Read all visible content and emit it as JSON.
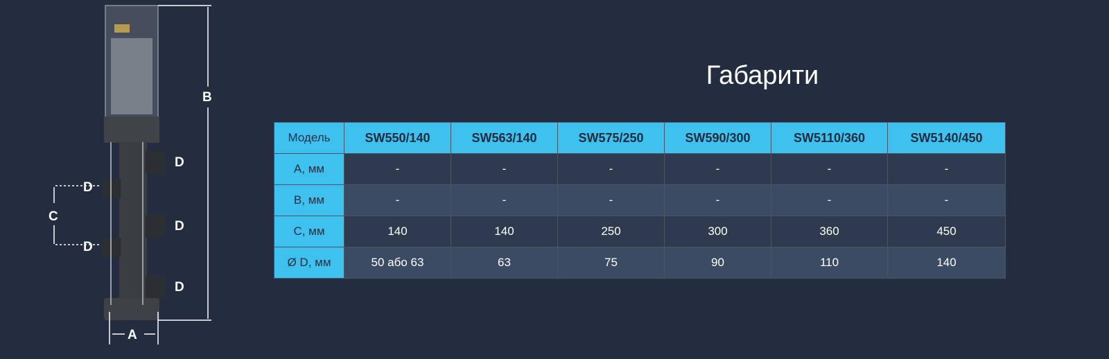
{
  "title": "Габарити",
  "table": {
    "header_label": "Модель",
    "models": [
      "SW550/140",
      "SW563/140",
      "SW575/250",
      "SW590/300",
      "SW5110/360",
      "SW5140/450"
    ],
    "rows": [
      {
        "label": "A, мм",
        "values": [
          "-",
          "-",
          "-",
          "-",
          "-",
          "-"
        ]
      },
      {
        "label": "B, мм",
        "values": [
          "-",
          "-",
          "-",
          "-",
          "-",
          "-"
        ]
      },
      {
        "label": "C, мм",
        "values": [
          "140",
          "140",
          "250",
          "300",
          "360",
          "450"
        ]
      },
      {
        "label": "Ø D, мм",
        "values": [
          "50 або 63",
          "63",
          "75",
          "90",
          "110",
          "140"
        ]
      }
    ]
  },
  "diagram": {
    "labels": {
      "a": "A",
      "b": "B",
      "c": "C",
      "d": "D"
    }
  },
  "colors": {
    "background": "#242d3f",
    "header": "#3fc1ef",
    "row_dark": "#2e3a4d",
    "row_light": "#3c4b64"
  }
}
